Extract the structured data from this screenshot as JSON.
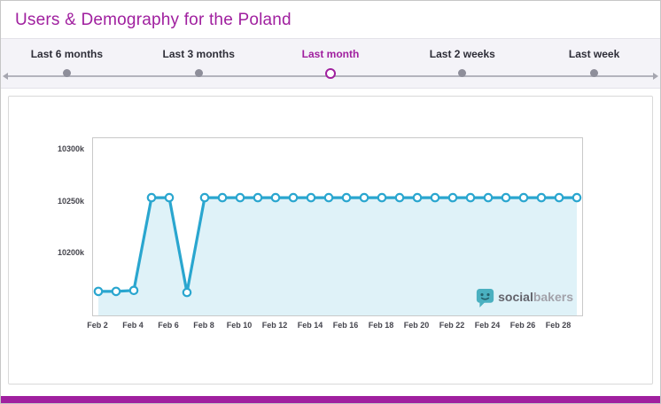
{
  "header": {
    "title": "Users & Demography for the Poland"
  },
  "colors": {
    "accent": "#a0209f",
    "chart_line": "#2aa6cf"
  },
  "range_selector": {
    "options": [
      {
        "label": "Last 6 months",
        "selected": false
      },
      {
        "label": "Last 3 months",
        "selected": false
      },
      {
        "label": "Last month",
        "selected": true
      },
      {
        "label": "Last 2 weeks",
        "selected": false
      },
      {
        "label": "Last week",
        "selected": false
      }
    ]
  },
  "chart_data": {
    "type": "line",
    "unit": "k",
    "grid": false,
    "legend": "none",
    "line_color": "#2aa6cf",
    "fill_opacity": 0.15,
    "ylim": [
      10140,
      10310
    ],
    "yticks": [
      10200,
      10250,
      10300
    ],
    "ytick_labels": [
      "10200k",
      "10250k",
      "10300k"
    ],
    "xtick_labels": [
      "Feb 2",
      "Feb 4",
      "Feb 6",
      "Feb 8",
      "Feb 10",
      "Feb 12",
      "Feb 14",
      "Feb 16",
      "Feb 18",
      "Feb 20",
      "Feb 22",
      "Feb 24",
      "Feb 26",
      "Feb 28"
    ],
    "x": [
      "Feb 2",
      "Feb 3",
      "Feb 4",
      "Feb 5",
      "Feb 6",
      "Feb 7",
      "Feb 8",
      "Feb 9",
      "Feb 10",
      "Feb 11",
      "Feb 12",
      "Feb 13",
      "Feb 14",
      "Feb 15",
      "Feb 16",
      "Feb 17",
      "Feb 18",
      "Feb 19",
      "Feb 20",
      "Feb 21",
      "Feb 22",
      "Feb 23",
      "Feb 24",
      "Feb 25",
      "Feb 26",
      "Feb 27",
      "Feb 28",
      "Feb 29"
    ],
    "values": [
      10163,
      10163,
      10164,
      10253,
      10253,
      10162,
      10253,
      10253,
      10253,
      10253,
      10253,
      10253,
      10253,
      10253,
      10253,
      10253,
      10253,
      10253,
      10253,
      10253,
      10253,
      10253,
      10253,
      10253,
      10253,
      10253,
      10253,
      10253
    ]
  },
  "branding": {
    "logo_text_primary": "social",
    "logo_text_secondary": "bakers"
  }
}
